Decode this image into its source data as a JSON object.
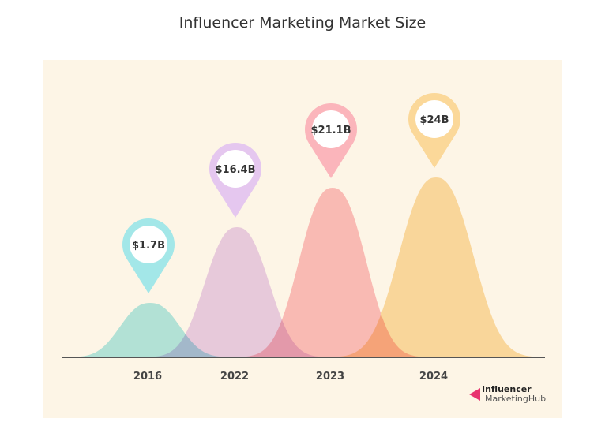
{
  "chart_data": {
    "type": "area",
    "title": "Influencer Marketing Market Size",
    "categories": [
      "2016",
      "2022",
      "2023",
      "2024"
    ],
    "values": [
      1.7,
      16.4,
      21.1,
      24
    ],
    "data_labels": [
      "$1.7B",
      "$16.4B",
      "$21.1B",
      "$24B"
    ],
    "unit": "billion USD",
    "colors": [
      "#a3e7e8",
      "#e5c7ef",
      "#fbb5bb",
      "#fbd899"
    ],
    "background": "#fdf5e6",
    "grid": false,
    "legend": "none"
  },
  "branding": {
    "line1": "Influencer",
    "line2": "MarketingHub",
    "color": "#e8326e"
  }
}
